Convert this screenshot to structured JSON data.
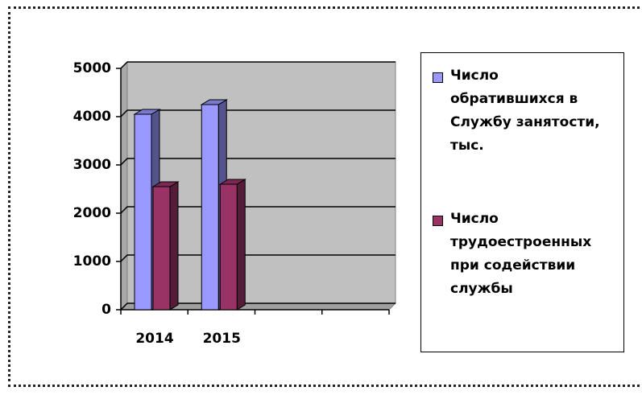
{
  "chart_data": {
    "type": "bar3d",
    "categories": [
      "2014",
      "2015",
      null,
      null
    ],
    "series": [
      {
        "name": "Число обратившихся в Службу занятости, тыс.",
        "color": "#9999ff",
        "values": [
          4050,
          4250,
          null,
          null
        ]
      },
      {
        "name": "Число трудоестроенных при содействии службы",
        "color": "#993366",
        "values": [
          2550,
          2600,
          null,
          null
        ]
      }
    ],
    "ylim": [
      0,
      5000
    ],
    "yticks": [
      0,
      1000,
      2000,
      3000,
      4000,
      5000
    ],
    "grid": true,
    "legend": "right"
  }
}
